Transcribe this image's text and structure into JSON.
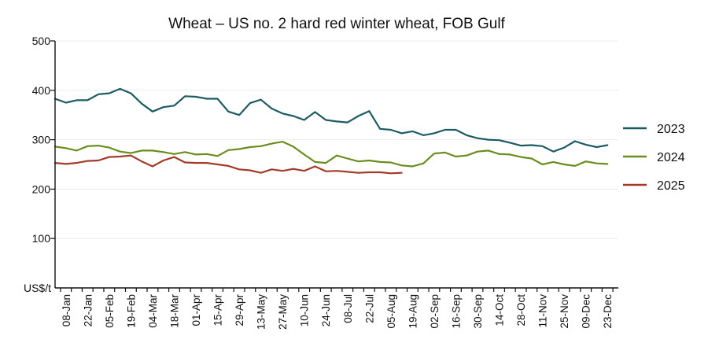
{
  "chart_data": {
    "type": "line",
    "title": "Wheat – US no. 2 hard red winter wheat, FOB Gulf",
    "unit_label": "US$/t",
    "ylim": [
      0,
      500
    ],
    "yticks": [
      100,
      200,
      300,
      400,
      500
    ],
    "grid": true,
    "x_tick_labels": [
      "08-Jan",
      "22-Jan",
      "05-Feb",
      "19-Feb",
      "04-Mar",
      "18-Mar",
      "01-Apr",
      "15-Apr",
      "29-Apr",
      "13-May",
      "27-May",
      "10-Jun",
      "24-Jun",
      "08-Jul",
      "22-Jul",
      "05-Aug",
      "19-Aug",
      "02-Sep",
      "16-Sep",
      "30-Sep",
      "14-Oct",
      "28-Oct",
      "11-Nov",
      "25-Nov",
      "09-Dec",
      "23-Dec"
    ],
    "legend_position": "right",
    "x_weeks": [
      1,
      2,
      3,
      4,
      5,
      6,
      7,
      8,
      9,
      10,
      11,
      12,
      13,
      14,
      15,
      16,
      17,
      18,
      19,
      20,
      21,
      22,
      23,
      24,
      25,
      26,
      27,
      28,
      29,
      30,
      31,
      32,
      33,
      34,
      35,
      36,
      37,
      38,
      39,
      40,
      41,
      42,
      43,
      44,
      45,
      46,
      47,
      48,
      49,
      50,
      51,
      52,
      53
    ],
    "series": [
      {
        "name": "2023",
        "color": "#1d5b63",
        "values": [
          383,
          375,
          380,
          380,
          392,
          394,
          403,
          394,
          373,
          357,
          366,
          369,
          388,
          387,
          383,
          383,
          357,
          350,
          374,
          381,
          363,
          353,
          348,
          340,
          356,
          340,
          337,
          335,
          348,
          358,
          322,
          320,
          313,
          317,
          309,
          313,
          320,
          320,
          309,
          303,
          300,
          299,
          294,
          288,
          289,
          287,
          276,
          284,
          297,
          290,
          285,
          289
        ]
      },
      {
        "name": "2024",
        "color": "#6a8d1f",
        "values": [
          286,
          283,
          278,
          287,
          288,
          284,
          276,
          273,
          278,
          278,
          275,
          271,
          275,
          270,
          271,
          267,
          279,
          281,
          285,
          287,
          292,
          296,
          286,
          270,
          255,
          253,
          268,
          262,
          256,
          258,
          255,
          254,
          248,
          246,
          252,
          272,
          274,
          266,
          268,
          276,
          278,
          271,
          270,
          265,
          262,
          250,
          255,
          250,
          247,
          256,
          252,
          251
        ]
      },
      {
        "name": "2025",
        "color": "#a33b28",
        "values": [
          253,
          251,
          253,
          257,
          258,
          265,
          266,
          268,
          256,
          246,
          258,
          265,
          254,
          253,
          253,
          250,
          247,
          240,
          238,
          233,
          240,
          237,
          241,
          237,
          246,
          236,
          237,
          235,
          233,
          234,
          234,
          232,
          233
        ]
      }
    ]
  }
}
